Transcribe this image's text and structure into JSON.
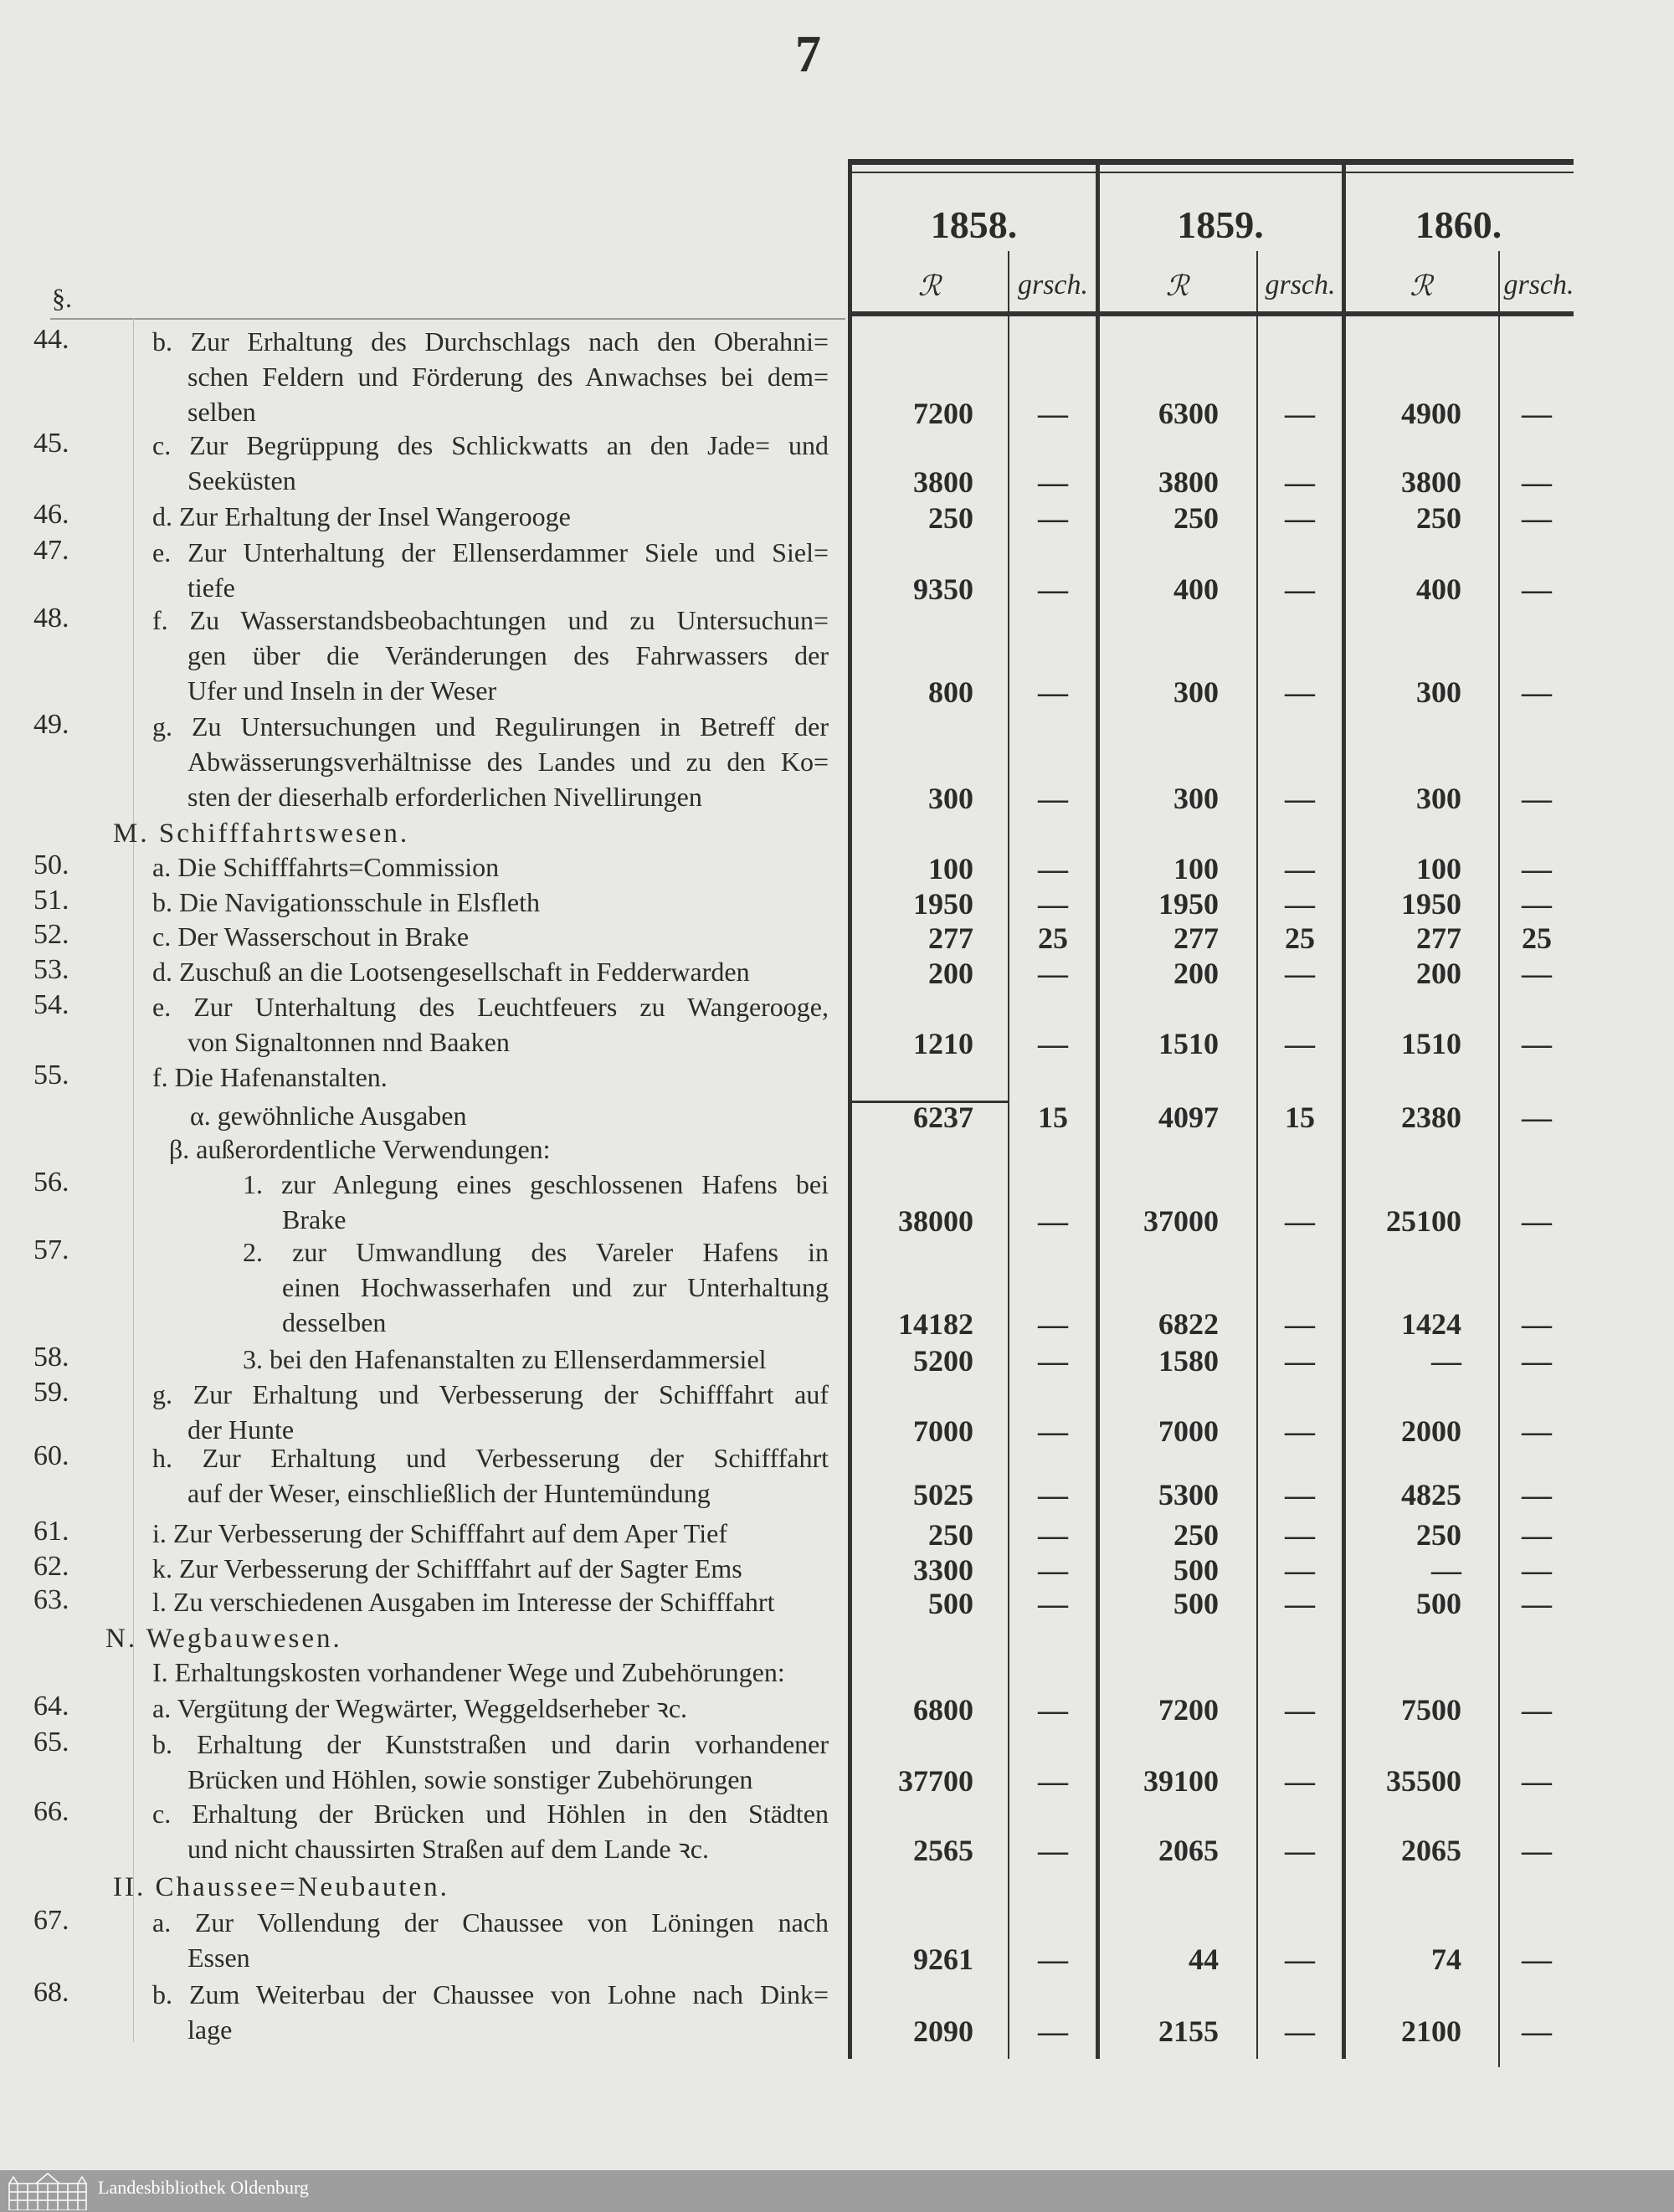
{
  "page_number": "7",
  "section_mark": "§.",
  "columns": {
    "years": [
      "1858.",
      "1859.",
      "1860."
    ],
    "unit_thaler": "ℛ",
    "unit_groschen": "grsch."
  },
  "rows": [
    {
      "num": "44.",
      "indent": "item",
      "lines": [
        "b. Zur Erhaltung des Durchschlags nach den Oberahni=",
        "schen Feldern und Förderung des Anwachses bei dem=",
        "selben"
      ],
      "values": [
        "7200",
        "—",
        "6300",
        "—",
        "4900",
        "—"
      ]
    },
    {
      "num": "45.",
      "indent": "item",
      "lines": [
        "c. Zur Begrüppung des Schlickwatts an den Jade= und",
        "Seeküsten"
      ],
      "values": [
        "3800",
        "—",
        "3800",
        "—",
        "3800",
        "—"
      ]
    },
    {
      "num": "46.",
      "indent": "item",
      "lines": [
        "d. Zur Erhaltung der Insel Wangerooge"
      ],
      "values": [
        "250",
        "—",
        "250",
        "—",
        "250",
        "—"
      ]
    },
    {
      "num": "47.",
      "indent": "item",
      "lines": [
        "e. Zur Unterhaltung der Ellenserdammer Siele und Siel=",
        "tiefe"
      ],
      "values": [
        "9350",
        "—",
        "400",
        "—",
        "400",
        "—"
      ]
    },
    {
      "num": "48.",
      "indent": "item",
      "lines": [
        "f. Zu Wasserstandsbeobachtungen und zu Untersuchun=",
        "gen über die Veränderungen des Fahrwassers der",
        "Ufer und Inseln in der Weser"
      ],
      "values": [
        "800",
        "—",
        "300",
        "—",
        "300",
        "—"
      ]
    },
    {
      "num": "49.",
      "indent": "item",
      "lines": [
        "g. Zu Untersuchungen und Regulirungen in Betreff der",
        "Abwässerungsverhältnisse des Landes und zu den Ko=",
        "sten der dieserhalb erforderlichen Nivellirungen"
      ],
      "values": [
        "300",
        "—",
        "300",
        "—",
        "300",
        "—"
      ]
    },
    {
      "num": "",
      "indent": "heading",
      "lines": [
        "M.  Schifffahrtswesen."
      ],
      "values": null
    },
    {
      "num": "50.",
      "indent": "item",
      "lines": [
        "a. Die Schifffahrts=Commission"
      ],
      "values": [
        "100",
        "—",
        "100",
        "—",
        "100",
        "—"
      ]
    },
    {
      "num": "51.",
      "indent": "item",
      "lines": [
        "b. Die Navigationsschule in Elsfleth"
      ],
      "values": [
        "1950",
        "—",
        "1950",
        "—",
        "1950",
        "—"
      ]
    },
    {
      "num": "52.",
      "indent": "item",
      "lines": [
        "c. Der Wasserschout in Brake"
      ],
      "values": [
        "277",
        "25",
        "277",
        "25",
        "277",
        "25"
      ]
    },
    {
      "num": "53.",
      "indent": "item",
      "lines": [
        "d. Zuschuß an die Lootsengesellschaft in Fedderwarden"
      ],
      "values": [
        "200",
        "—",
        "200",
        "—",
        "200",
        "—"
      ]
    },
    {
      "num": "54.",
      "indent": "item",
      "lines": [
        "e. Zur Unterhaltung des Leuchtfeuers zu Wangerooge,",
        "von Signaltonnen nnd Baaken"
      ],
      "values": [
        "1210",
        "—",
        "1510",
        "—",
        "1510",
        "—"
      ]
    },
    {
      "num": "55.",
      "indent": "item",
      "lines": [
        "f. Die Hafenanstalten."
      ],
      "values": null
    },
    {
      "num": "",
      "indent": "alpha",
      "lines": [
        "α. gewöhnliche Ausgaben"
      ],
      "values": [
        "6237",
        "15",
        "4097",
        "15",
        "2380",
        "—"
      ]
    },
    {
      "num": "",
      "indent": "beta",
      "lines": [
        "β. außerordentliche Verwendungen:"
      ],
      "values": null
    },
    {
      "num": "56.",
      "indent": "sub",
      "lines": [
        "1. zur Anlegung eines geschlossenen Hafens bei",
        "Brake"
      ],
      "values": [
        "38000",
        "—",
        "37000",
        "—",
        "25100",
        "—"
      ]
    },
    {
      "num": "57.",
      "indent": "sub",
      "lines": [
        "2. zur Umwandlung des Vareler Hafens in",
        "einen Hochwasserhafen und zur Unterhaltung",
        "desselben"
      ],
      "values": [
        "14182",
        "—",
        "6822",
        "—",
        "1424",
        "—"
      ]
    },
    {
      "num": "58.",
      "indent": "sub",
      "lines": [
        "3. bei den Hafenanstalten zu Ellenserdammersiel"
      ],
      "values": [
        "5200",
        "—",
        "1580",
        "—",
        "—",
        "—"
      ]
    },
    {
      "num": "59.",
      "indent": "item",
      "lines": [
        "g. Zur Erhaltung und Verbesserung der Schifffahrt auf",
        "der Hunte"
      ],
      "values": [
        "7000",
        "—",
        "7000",
        "—",
        "2000",
        "—"
      ]
    },
    {
      "num": "60.",
      "indent": "item",
      "lines": [
        "h. Zur Erhaltung und Verbesserung der Schifffahrt",
        "auf der Weser, einschließlich der Huntemündung"
      ],
      "values": [
        "5025",
        "—",
        "5300",
        "—",
        "4825",
        "—"
      ]
    },
    {
      "num": "61.",
      "indent": "item",
      "lines": [
        "i. Zur Verbesserung der Schifffahrt auf dem Aper Tief"
      ],
      "values": [
        "250",
        "—",
        "250",
        "—",
        "250",
        "—"
      ]
    },
    {
      "num": "62.",
      "indent": "item",
      "lines": [
        "k. Zur Verbesserung der Schifffahrt auf der Sagter Ems"
      ],
      "values": [
        "3300",
        "—",
        "500",
        "—",
        "—",
        "—"
      ]
    },
    {
      "num": "63.",
      "indent": "item",
      "lines": [
        "l. Zu verschiedenen Ausgaben im Interesse der Schifffahrt"
      ],
      "values": [
        "500",
        "—",
        "500",
        "—",
        "500",
        "—"
      ]
    },
    {
      "num": "",
      "indent": "heading2",
      "lines": [
        "N.  Wegbauwesen."
      ],
      "values": null
    },
    {
      "num": "",
      "indent": "item",
      "lines": [
        "I. Erhaltungskosten vorhandener Wege und Zubehörungen:"
      ],
      "values": null
    },
    {
      "num": "64.",
      "indent": "item",
      "lines": [
        "a. Vergütung der Wegwärter, Weggeldserheber ꝛc."
      ],
      "values": [
        "6800",
        "—",
        "7200",
        "—",
        "7500",
        "—"
      ]
    },
    {
      "num": "65.",
      "indent": "item",
      "lines": [
        "b. Erhaltung der Kunststraßen und darin vorhandener",
        "Brücken und Höhlen, sowie sonstiger Zubehörungen"
      ],
      "values": [
        "37700",
        "—",
        "39100",
        "—",
        "35500",
        "—"
      ]
    },
    {
      "num": "66.",
      "indent": "item",
      "lines": [
        "c. Erhaltung der Brücken und Höhlen in den Städten",
        "und nicht chaussirten Straßen auf dem Lande ꝛc."
      ],
      "values": [
        "2565",
        "—",
        "2065",
        "—",
        "2065",
        "—"
      ]
    },
    {
      "num": "",
      "indent": "heading",
      "lines": [
        "II. Chaussee=Neubauten."
      ],
      "values": null
    },
    {
      "num": "67.",
      "indent": "item",
      "lines": [
        "a. Zur Vollendung der Chaussee von Löningen nach",
        "Essen"
      ],
      "values": [
        "9261",
        "—",
        "44",
        "—",
        "74",
        "—"
      ]
    },
    {
      "num": "68.",
      "indent": "item",
      "lines": [
        "b. Zum Weiterbau der Chaussee von Lohne nach Dink=",
        "lage"
      ],
      "values": [
        "2090",
        "—",
        "2155",
        "—",
        "2100",
        "—"
      ]
    }
  ],
  "footer": {
    "library_name": "Landesbibliothek Oldenburg"
  },
  "colors": {
    "paper": "#e8e8e5",
    "ink": "#2b2b2b",
    "footer_bar": "#9e9e9e"
  }
}
